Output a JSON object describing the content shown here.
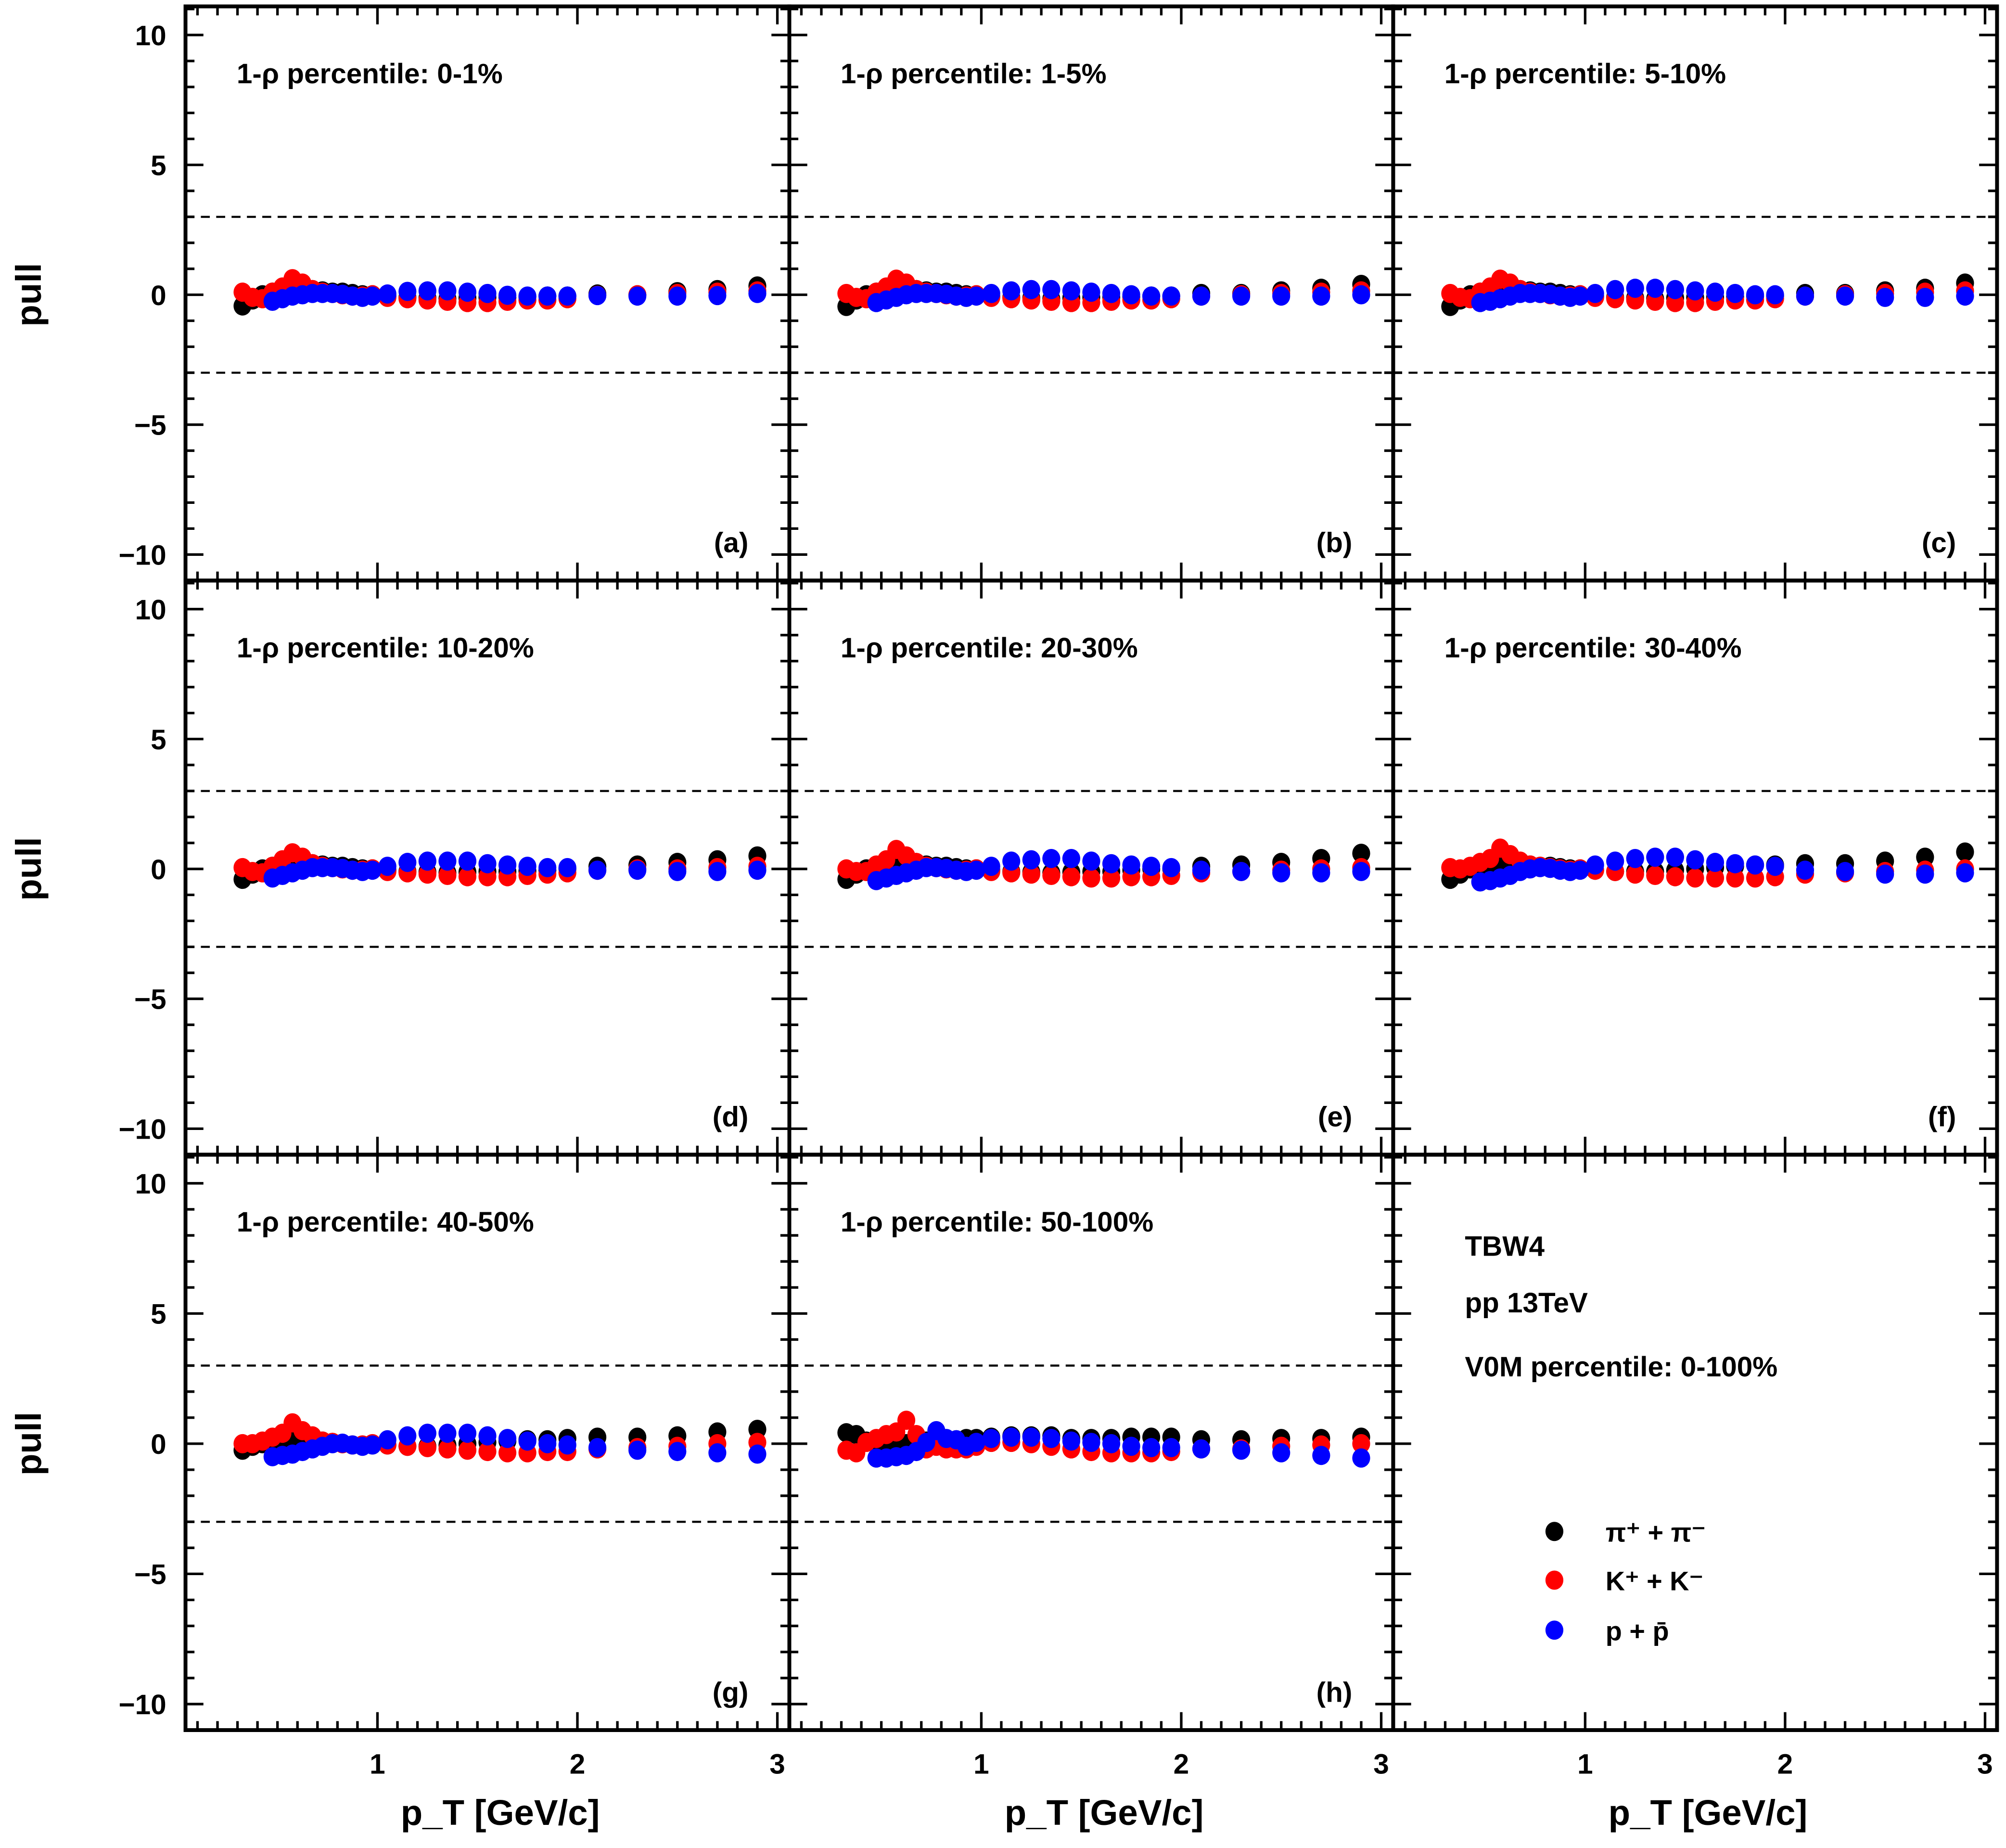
{
  "chart_data": {
    "type": "scatter",
    "layout": "3x3 grid",
    "ylabel": "pull",
    "xlabel": "p_T [GeV/c]",
    "xlim": [
      0.04,
      3.06
    ],
    "ylim": [
      -11,
      11.1
    ],
    "x_ticks": [
      "1",
      "2",
      "3"
    ],
    "y_ticks": [
      "10",
      "5",
      "0",
      "−5",
      "−10"
    ],
    "reference_lines": [
      3,
      -3
    ],
    "series_styles": [
      {
        "name": "π⁺ + π⁻",
        "color": "#000000"
      },
      {
        "name": "K⁺ + K⁻",
        "color": "#ff0000"
      },
      {
        "name": "p + p̄",
        "color": "#0000ff"
      }
    ],
    "x_pion_kaon": [
      0.325,
      0.375,
      0.425,
      0.475,
      0.525,
      0.575,
      0.625,
      0.675,
      0.725,
      0.775,
      0.825,
      0.875,
      0.925,
      0.975,
      1.05,
      1.15,
      1.25,
      1.35,
      1.45,
      1.55,
      1.65,
      1.75,
      1.85,
      1.95,
      2.1,
      2.3,
      2.5,
      2.7,
      2.9
    ],
    "x_proton": [
      0.475,
      0.525,
      0.575,
      0.625,
      0.675,
      0.725,
      0.775,
      0.825,
      0.875,
      0.925,
      0.975,
      1.05,
      1.15,
      1.25,
      1.35,
      1.45,
      1.55,
      1.65,
      1.75,
      1.85,
      1.95,
      2.1,
      2.3,
      2.5,
      2.7,
      2.9
    ],
    "panels": [
      {
        "title": "1-ρ percentile: 0-1%",
        "tag": "(a)",
        "pion": [
          -0.43,
          -0.2,
          0,
          0.1,
          0.2,
          0.28,
          0.25,
          0.2,
          0.15,
          0.1,
          0.1,
          0.05,
          0,
          0,
          -0.05,
          -0.1,
          -0.12,
          -0.15,
          -0.12,
          -0.1,
          -0.1,
          -0.08,
          -0.05,
          -0.05,
          0.03,
          0.0,
          0.12,
          0.2,
          0.34
        ],
        "kaon": [
          0.1,
          -0.1,
          -0.15,
          0.1,
          0.3,
          0.62,
          0.45,
          0.2,
          0.1,
          0.05,
          0,
          -0.05,
          -0.05,
          0,
          -0.1,
          -0.15,
          -0.2,
          -0.25,
          -0.3,
          -0.3,
          -0.25,
          -0.2,
          -0.2,
          -0.15,
          -0.02,
          0,
          0.05,
          0.1,
          0.15
        ],
        "proton": [
          -0.25,
          -0.15,
          -0.05,
          0,
          0.05,
          0.05,
          0.05,
          0.02,
          -0.05,
          -0.1,
          -0.05,
          0.03,
          0.13,
          0.15,
          0.15,
          0.1,
          0.05,
          -0.02,
          -0.05,
          -0.05,
          -0.05,
          -0.03,
          -0.05,
          -0.05,
          -0.03,
          0.05
        ]
      },
      {
        "title": "1-ρ percentile: 1-5%",
        "tag": "(b)",
        "pion": [
          -0.45,
          -0.2,
          0,
          0.1,
          0.2,
          0.28,
          0.25,
          0.2,
          0.15,
          0.1,
          0.1,
          0.05,
          0,
          0,
          -0.05,
          -0.1,
          -0.12,
          -0.15,
          -0.12,
          -0.1,
          -0.1,
          -0.08,
          -0.05,
          -0.05,
          0.05,
          0.05,
          0.15,
          0.25,
          0.4
        ],
        "kaon": [
          0.05,
          -0.1,
          -0.15,
          0.1,
          0.3,
          0.6,
          0.45,
          0.2,
          0.1,
          0.05,
          0,
          -0.05,
          -0.05,
          0,
          -0.1,
          -0.15,
          -0.2,
          -0.25,
          -0.3,
          -0.3,
          -0.25,
          -0.2,
          -0.2,
          -0.15,
          -0.05,
          0,
          0.05,
          0.1,
          0.15
        ],
        "proton": [
          -0.3,
          -0.2,
          -0.1,
          0,
          0.05,
          0.05,
          0.05,
          0.02,
          -0.05,
          -0.1,
          -0.05,
          0.05,
          0.15,
          0.2,
          0.2,
          0.15,
          0.1,
          0.05,
          0,
          -0.05,
          -0.05,
          -0.05,
          -0.05,
          -0.05,
          -0.05,
          0
        ]
      },
      {
        "title": "1-ρ percentile: 5-10%",
        "tag": "(c)",
        "pion": [
          -0.45,
          -0.2,
          0,
          0.1,
          0.2,
          0.3,
          0.25,
          0.2,
          0.15,
          0.1,
          0.1,
          0.05,
          0,
          0,
          -0.05,
          -0.1,
          -0.12,
          -0.15,
          -0.12,
          -0.1,
          -0.1,
          -0.08,
          -0.05,
          -0.05,
          0.05,
          0.05,
          0.15,
          0.25,
          0.45
        ],
        "kaon": [
          0.05,
          -0.1,
          -0.15,
          0.1,
          0.3,
          0.6,
          0.45,
          0.2,
          0.1,
          0.05,
          0,
          -0.05,
          -0.05,
          0,
          -0.1,
          -0.15,
          -0.2,
          -0.25,
          -0.3,
          -0.3,
          -0.25,
          -0.2,
          -0.2,
          -0.15,
          -0.05,
          0,
          0.05,
          0.1,
          0.15
        ],
        "proton": [
          -0.3,
          -0.25,
          -0.15,
          -0.05,
          0.05,
          0.05,
          0.05,
          0.02,
          -0.05,
          -0.1,
          -0.05,
          0.05,
          0.2,
          0.25,
          0.25,
          0.2,
          0.15,
          0.1,
          0.05,
          0,
          0,
          -0.05,
          -0.05,
          -0.1,
          -0.1,
          -0.05
        ]
      },
      {
        "title": "1-ρ percentile: 10-20%",
        "tag": "(d)",
        "pion": [
          -0.4,
          -0.2,
          0,
          0.1,
          0.2,
          0.3,
          0.25,
          0.2,
          0.15,
          0.1,
          0.1,
          0.05,
          0,
          0,
          -0.05,
          -0.1,
          -0.12,
          -0.15,
          -0.12,
          -0.1,
          -0.1,
          -0.08,
          -0.05,
          0,
          0.1,
          0.15,
          0.25,
          0.35,
          0.5
        ],
        "kaon": [
          0.05,
          -0.1,
          -0.15,
          0.1,
          0.35,
          0.62,
          0.45,
          0.2,
          0.1,
          0.05,
          0,
          -0.05,
          -0.05,
          0,
          -0.1,
          -0.15,
          -0.2,
          -0.25,
          -0.3,
          -0.3,
          -0.3,
          -0.25,
          -0.2,
          -0.15,
          -0.05,
          0,
          0,
          0.05,
          0.1
        ],
        "proton": [
          -0.35,
          -0.25,
          -0.15,
          -0.05,
          0.05,
          0.05,
          0.05,
          0.02,
          -0.05,
          -0.1,
          -0.05,
          0.1,
          0.25,
          0.3,
          0.3,
          0.3,
          0.2,
          0.15,
          0.1,
          0.05,
          0.05,
          -0.05,
          -0.05,
          -0.1,
          -0.1,
          -0.05
        ]
      },
      {
        "title": "1-ρ percentile: 20-30%",
        "tag": "(e)",
        "pion": [
          -0.4,
          -0.2,
          0,
          0.1,
          0.2,
          0.3,
          0.25,
          0.2,
          0.15,
          0.1,
          0.1,
          0.05,
          0,
          0,
          -0.05,
          -0.1,
          -0.12,
          -0.15,
          -0.12,
          -0.1,
          -0.1,
          -0.05,
          0,
          0,
          0.1,
          0.15,
          0.25,
          0.4,
          0.6
        ],
        "kaon": [
          0.0,
          -0.1,
          -0.1,
          0.15,
          0.35,
          0.75,
          0.5,
          0.25,
          0.1,
          0.05,
          0,
          -0.05,
          -0.05,
          0,
          -0.1,
          -0.15,
          -0.2,
          -0.25,
          -0.3,
          -0.35,
          -0.35,
          -0.3,
          -0.3,
          -0.25,
          -0.15,
          -0.1,
          -0.05,
          0,
          0.05
        ],
        "proton": [
          -0.45,
          -0.35,
          -0.25,
          -0.15,
          -0.05,
          0.05,
          0.05,
          0.02,
          -0.05,
          -0.1,
          -0.05,
          0.1,
          0.3,
          0.35,
          0.4,
          0.4,
          0.3,
          0.2,
          0.15,
          0.1,
          0.05,
          -0.05,
          -0.1,
          -0.15,
          -0.15,
          -0.1
        ]
      },
      {
        "title": "1-ρ percentile: 30-40%",
        "tag": "(f)",
        "pion": [
          -0.4,
          -0.2,
          0,
          0.1,
          0.2,
          0.3,
          0.25,
          0.2,
          0.15,
          0.1,
          0.1,
          0.05,
          0,
          0,
          -0.05,
          -0.1,
          -0.1,
          -0.1,
          -0.05,
          0,
          0.05,
          0.1,
          0.15,
          0.15,
          0.2,
          0.2,
          0.3,
          0.45,
          0.65
        ],
        "kaon": [
          0.05,
          0,
          0.1,
          0.25,
          0.4,
          0.8,
          0.55,
          0.3,
          0.15,
          0.1,
          0.05,
          0,
          -0.05,
          0,
          -0.05,
          -0.1,
          -0.2,
          -0.25,
          -0.3,
          -0.35,
          -0.35,
          -0.35,
          -0.35,
          -0.3,
          -0.2,
          -0.15,
          -0.1,
          -0.05,
          0
        ],
        "proton": [
          -0.5,
          -0.45,
          -0.35,
          -0.25,
          -0.1,
          0,
          0.05,
          0.02,
          -0.05,
          -0.1,
          -0.05,
          0.15,
          0.3,
          0.4,
          0.45,
          0.45,
          0.35,
          0.25,
          0.2,
          0.15,
          0.1,
          -0.05,
          -0.1,
          -0.2,
          -0.2,
          -0.15
        ]
      },
      {
        "title": "1-ρ percentile: 40-50%",
        "tag": "(g)",
        "pion": [
          -0.25,
          -0.1,
          0,
          0.05,
          0.1,
          0.2,
          0.2,
          0.15,
          0.1,
          0.05,
          0,
          -0.05,
          -0.05,
          -0.05,
          -0.05,
          -0.1,
          -0.1,
          -0.05,
          0,
          0.05,
          0.1,
          0.15,
          0.15,
          0.2,
          0.25,
          0.25,
          0.3,
          0.45,
          0.55
        ],
        "kaon": [
          0.0,
          0.0,
          0.1,
          0.25,
          0.4,
          0.8,
          0.5,
          0.3,
          0.1,
          0.05,
          0,
          -0.05,
          -0.05,
          0,
          -0.05,
          -0.1,
          -0.15,
          -0.2,
          -0.25,
          -0.3,
          -0.35,
          -0.35,
          -0.3,
          -0.3,
          -0.2,
          -0.15,
          -0.1,
          0,
          0.05
        ],
        "proton": [
          -0.5,
          -0.45,
          -0.4,
          -0.3,
          -0.2,
          -0.1,
          0,
          0.02,
          -0.05,
          -0.1,
          -0.05,
          0.15,
          0.3,
          0.4,
          0.4,
          0.4,
          0.3,
          0.2,
          0.1,
          0,
          -0.05,
          -0.15,
          -0.25,
          -0.3,
          -0.35,
          -0.4
        ]
      },
      {
        "title": "1-ρ percentile: 50-100%",
        "tag": "(h)",
        "pion": [
          0.42,
          0.35,
          0.1,
          0.0,
          -0.05,
          -0.1,
          0,
          0.05,
          0.1,
          0.15,
          0.15,
          0.15,
          0.2,
          0.2,
          0.25,
          0.3,
          0.3,
          0.3,
          0.2,
          0.2,
          0.2,
          0.25,
          0.25,
          0.25,
          0.15,
          0.15,
          0.2,
          0.2,
          0.25
        ],
        "kaon": [
          -0.25,
          -0.35,
          0.05,
          0.2,
          0.35,
          0.45,
          0.9,
          0.35,
          -0.2,
          -0.1,
          -0.2,
          -0.2,
          -0.2,
          -0.1,
          0.05,
          0.05,
          0,
          -0.1,
          -0.2,
          -0.3,
          -0.35,
          -0.35,
          -0.35,
          -0.3,
          -0.2,
          -0.2,
          -0.1,
          -0.05,
          0
        ],
        "proton": [
          -0.55,
          -0.55,
          -0.5,
          -0.45,
          -0.3,
          0.05,
          0.5,
          0.2,
          0.15,
          -0.1,
          0.05,
          0.2,
          0.25,
          0.25,
          0.2,
          0.1,
          0.05,
          0,
          -0.1,
          -0.15,
          -0.15,
          -0.2,
          -0.25,
          -0.35,
          -0.45,
          -0.55
        ]
      }
    ],
    "info_panel": {
      "lines": [
        "TBW4",
        "pp 13TeV",
        "V0M percentile: 0-100%"
      ],
      "legend_placement": "bottom of panel (i)"
    }
  }
}
